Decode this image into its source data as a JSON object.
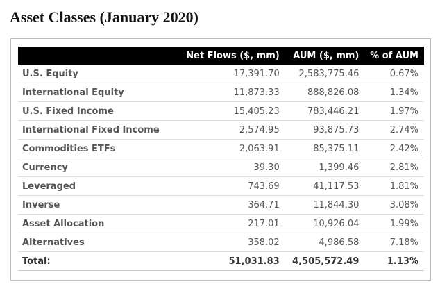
{
  "title": "Asset Classes (January 2020)",
  "table": {
    "header": [
      "Net Flows ($, mm)",
      "AUM ($, mm)",
      "% of AUM"
    ],
    "rows": [
      [
        "U.S. Equity",
        "17,391.70",
        "2,583,775.46",
        "0.67%"
      ],
      [
        "International Equity",
        "11,873.33",
        "888,826.08",
        "1.34%"
      ],
      [
        "U.S. Fixed Income",
        "15,405.23",
        "783,446.21",
        "1.97%"
      ],
      [
        "International Fixed Income",
        "2,574.95",
        "93,875.73",
        "2.74%"
      ],
      [
        "Commodities ETFs",
        "2,063.91",
        "85,375.11",
        "2.42%"
      ],
      [
        "Currency",
        "39.30",
        "1,399.46",
        "2.81%"
      ],
      [
        "Leveraged",
        "743.69",
        "41,117.53",
        "1.81%"
      ],
      [
        "Inverse",
        "364.71",
        "11,844.30",
        "3.08%"
      ],
      [
        "Asset Allocation",
        "217.01",
        "10,926.04",
        "1.99%"
      ],
      [
        "Alternatives",
        "358.02",
        "4,986.58",
        "7.18%"
      ]
    ],
    "total": [
      "Total:",
      "51,031.83",
      "4,505,572.49",
      "1.13%"
    ]
  }
}
